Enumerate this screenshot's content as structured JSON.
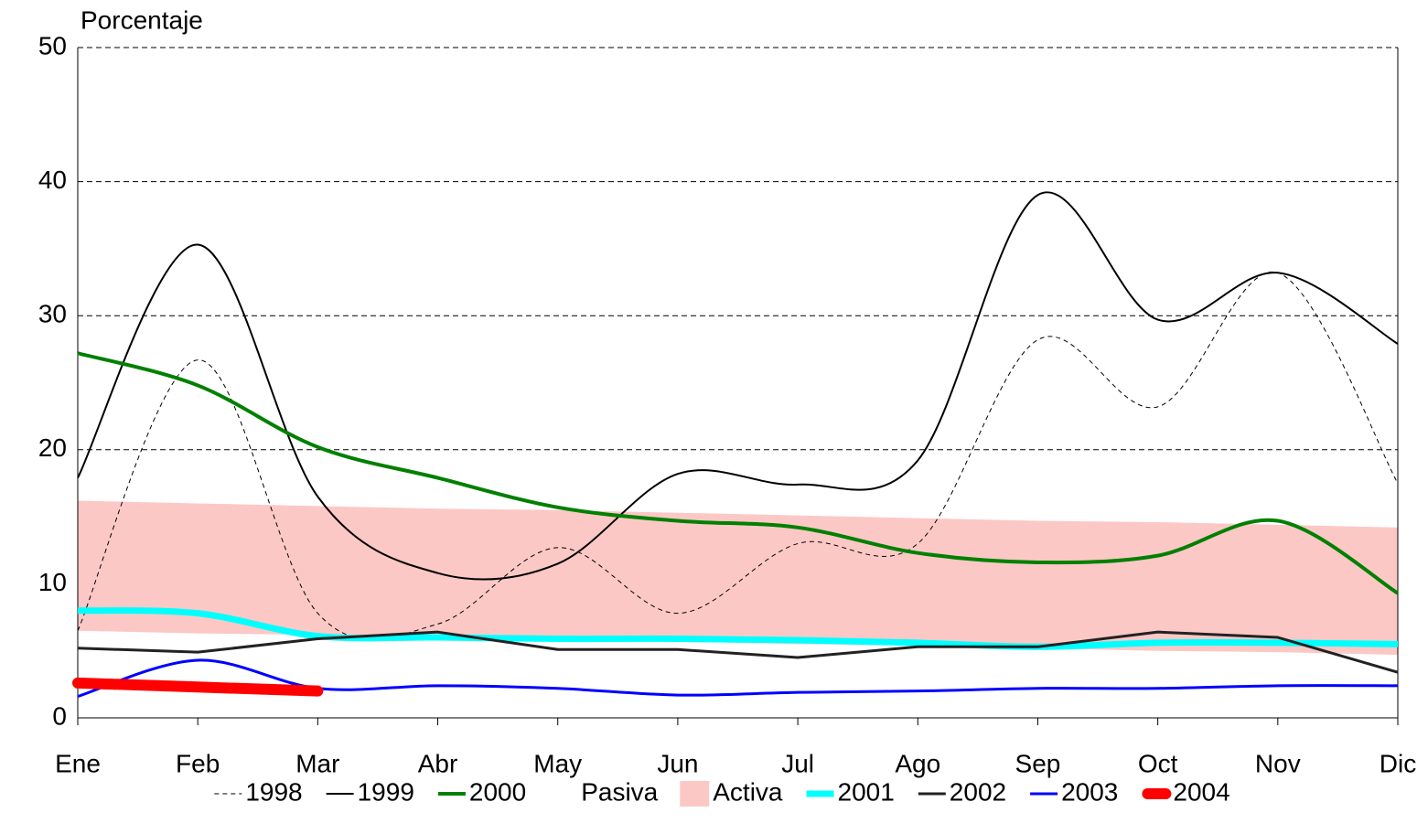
{
  "chart_data": {
    "type": "line",
    "y_label": "Porcentaje",
    "categories": [
      "Ene",
      "Feb",
      "Mar",
      "Abr",
      "May",
      "Jun",
      "Jul",
      "Ago",
      "Sep",
      "Oct",
      "Nov",
      "Dic"
    ],
    "ylim": [
      0,
      50
    ],
    "yticks": [
      0,
      10,
      20,
      30,
      40,
      50
    ],
    "grid": true,
    "legend": "bottom",
    "series": [
      {
        "name": "1998",
        "color": "#000000",
        "width": 1,
        "dash": true,
        "smooth": true,
        "values": [
          6.5,
          26.7,
          7.8,
          7.0,
          12.7,
          7.8,
          13.0,
          13.0,
          28.2,
          23.2,
          33.2,
          17.5
        ]
      },
      {
        "name": "1999",
        "color": "#000000",
        "width": 2,
        "smooth": true,
        "values": [
          17.9,
          35.3,
          16.5,
          10.8,
          11.5,
          18.2,
          17.4,
          19.2,
          39.0,
          29.7,
          33.2,
          27.9
        ]
      },
      {
        "name": "2000",
        "color": "#008000",
        "width": 4,
        "smooth": true,
        "values": [
          27.2,
          24.8,
          20.2,
          17.9,
          15.7,
          14.7,
          14.2,
          12.3,
          11.6,
          12.1,
          14.7,
          9.3
        ]
      },
      {
        "name": "Pasiva",
        "color": "#ffffff",
        "area": true,
        "values": [
          6.5,
          6.3,
          6.2,
          6.0,
          5.8,
          5.7,
          5.5,
          5.4,
          5.2,
          5.0,
          4.9,
          4.7
        ]
      },
      {
        "name": "Activa",
        "color": "#fcc8c6",
        "area": true,
        "values": [
          9.7,
          9.7,
          9.6,
          9.6,
          9.7,
          9.6,
          9.6,
          9.5,
          9.5,
          9.6,
          9.5,
          9.5
        ]
      },
      {
        "name": "2001",
        "color": "#00ffff",
        "width": 7,
        "smooth": true,
        "values": [
          8.0,
          7.8,
          6.1,
          6.0,
          5.9,
          5.9,
          5.8,
          5.6,
          5.3,
          5.6,
          5.6,
          5.5
        ]
      },
      {
        "name": "2002",
        "color": "#222222",
        "width": 3,
        "values": [
          5.2,
          4.9,
          5.9,
          6.4,
          5.1,
          5.1,
          4.5,
          5.3,
          5.3,
          6.4,
          6.0,
          3.4
        ]
      },
      {
        "name": "2003",
        "color": "#0000ff",
        "width": 3,
        "smooth": true,
        "values": [
          1.6,
          4.3,
          2.2,
          2.4,
          2.2,
          1.7,
          1.9,
          2.0,
          2.2,
          2.2,
          2.4,
          2.4
        ]
      },
      {
        "name": "2004",
        "color": "#ff0000",
        "width": 12,
        "values": [
          2.6,
          2.3,
          2.0,
          null,
          null,
          null,
          null,
          null,
          null,
          null,
          null,
          null
        ]
      }
    ]
  }
}
